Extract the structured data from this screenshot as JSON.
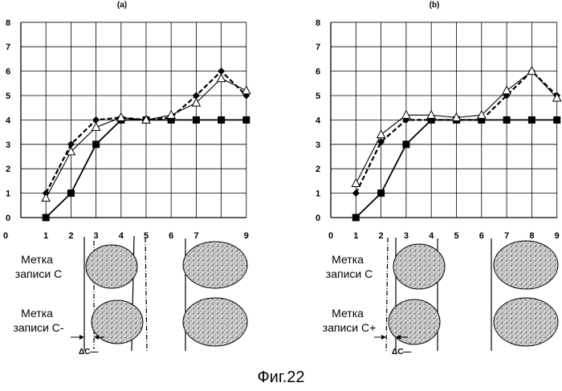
{
  "figure_caption": "Фиг.22",
  "chart_data": [
    {
      "type": "line",
      "panel_label": "(a)",
      "x": [
        1,
        2,
        3,
        4,
        5,
        6,
        7,
        8,
        9
      ],
      "xlim": [
        0,
        9
      ],
      "ylim": [
        0,
        8
      ],
      "x_ticks": [
        "0",
        "1",
        "2",
        "3",
        "4",
        "5",
        "6",
        "7",
        "9"
      ],
      "y_ticks": [
        "0",
        "1",
        "2",
        "3",
        "4",
        "5",
        "6",
        "7",
        "8"
      ],
      "grid": true,
      "series": [
        {
          "marker": "square",
          "style": "solid",
          "values": [
            0,
            1,
            3,
            4,
            4,
            4,
            4,
            4,
            4
          ]
        },
        {
          "marker": "diamond",
          "style": "dashed",
          "values": [
            1,
            3,
            4,
            4.1,
            4,
            4.1,
            5,
            6,
            5
          ]
        },
        {
          "marker": "triangle",
          "style": "solid",
          "values": [
            0.8,
            2.7,
            3.7,
            4.1,
            4,
            4.2,
            4.7,
            5.7,
            5.2
          ]
        }
      ],
      "record_marks": {
        "row1_label": "Метка записи С",
        "row2_label": "Метка записи С-",
        "delta_label": "ΔC—"
      }
    },
    {
      "type": "line",
      "panel_label": "(b)",
      "x": [
        1,
        2,
        3,
        4,
        5,
        6,
        7,
        8,
        9
      ],
      "xlim": [
        0,
        9
      ],
      "ylim": [
        0,
        8
      ],
      "x_ticks": [
        "0",
        "1",
        "2",
        "3",
        "4",
        "5",
        "6",
        "7",
        "8",
        "9"
      ],
      "y_ticks": [
        "0",
        "1",
        "2",
        "3",
        "4",
        "5",
        "6",
        "7",
        "8"
      ],
      "grid": true,
      "series": [
        {
          "marker": "square",
          "style": "solid",
          "values": [
            0,
            1,
            3,
            4,
            4,
            4,
            4,
            4,
            4
          ]
        },
        {
          "marker": "diamond",
          "style": "dashed",
          "values": [
            1,
            3.1,
            4,
            4,
            4,
            4,
            5,
            6,
            5
          ]
        },
        {
          "marker": "triangle",
          "style": "solid",
          "values": [
            1.4,
            3.4,
            4.2,
            4.2,
            4.1,
            4.2,
            5.2,
            6,
            4.9
          ]
        }
      ],
      "record_marks": {
        "row1_label": "Метка записи С",
        "row2_label": "Метка записи С+",
        "delta_label": "ΔC—"
      }
    }
  ]
}
